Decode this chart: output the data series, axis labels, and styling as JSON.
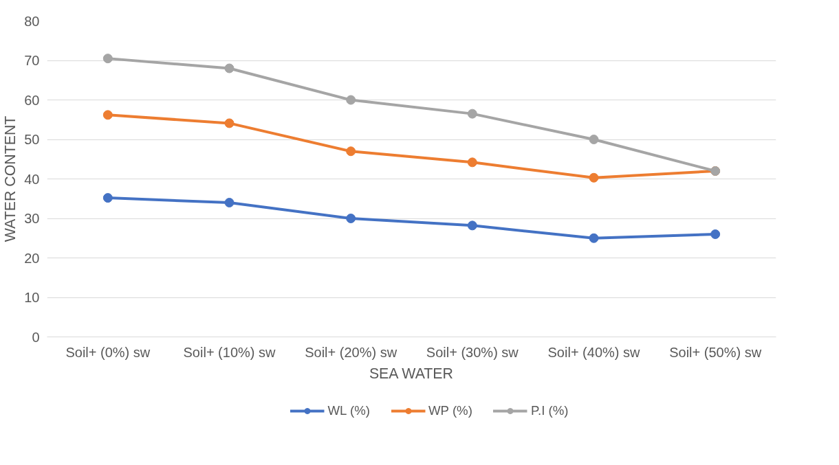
{
  "chart_data": {
    "type": "line",
    "xlabel": "SEA WATER",
    "ylabel": "WATER CONTENT",
    "categories": [
      "Soil+ (0%) sw",
      "Soil+ (10%) sw",
      "Soil+ (20%) sw",
      "Soil+ (30%) sw",
      "Soil+ (40%) sw",
      "Soil+ (50%) sw"
    ],
    "series": [
      {
        "name": "WL (%)",
        "color": "#4472c4",
        "values": [
          35.2,
          34,
          30,
          28.2,
          25,
          26
        ]
      },
      {
        "name": "WP (%)",
        "color": "#ed7d31",
        "values": [
          56.2,
          54.1,
          47,
          44.2,
          40.3,
          42
        ]
      },
      {
        "name": "P.I (%)",
        "color": "#a5a5a5",
        "values": [
          70.5,
          68,
          60,
          56.5,
          50,
          42
        ]
      }
    ],
    "ylim": [
      0,
      80
    ],
    "yticks": [
      0,
      10,
      20,
      30,
      40,
      50,
      60,
      70,
      80
    ],
    "grid": "y",
    "legend": "bottom",
    "marker": "circle",
    "line_style": "solid"
  }
}
